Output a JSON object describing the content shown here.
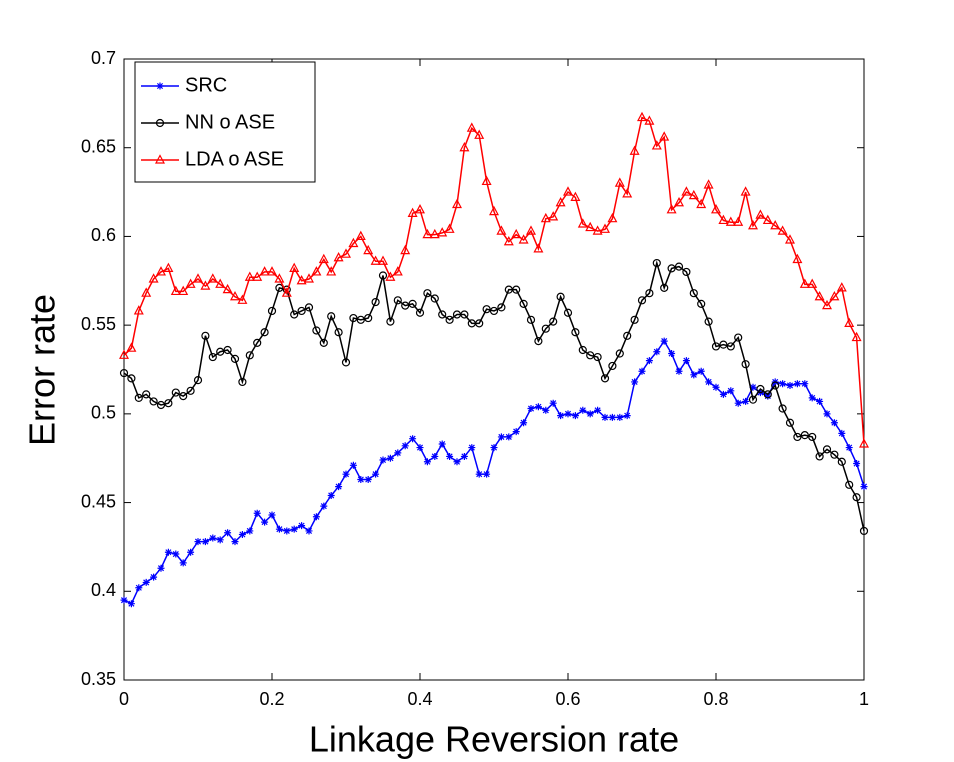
{
  "chart_data": {
    "type": "line",
    "x_label": "Linkage Reversion rate",
    "y_label": "Error rate",
    "xlim": [
      0,
      1
    ],
    "ylim": [
      0.35,
      0.7
    ],
    "xticks": [
      0,
      0.2,
      0.4,
      0.6,
      0.8,
      1
    ],
    "yticks": [
      0.35,
      0.4,
      0.45,
      0.5,
      0.55,
      0.6,
      0.65,
      0.7
    ],
    "legend": "upper left",
    "grid": false,
    "x": [
      0,
      0.01,
      0.02,
      0.03,
      0.04,
      0.05,
      0.06,
      0.07,
      0.08,
      0.09,
      0.1,
      0.11,
      0.12,
      0.13,
      0.14,
      0.15,
      0.16,
      0.17,
      0.18,
      0.19,
      0.2,
      0.21,
      0.22,
      0.23,
      0.24,
      0.25,
      0.26,
      0.27,
      0.28,
      0.29,
      0.3,
      0.31,
      0.32,
      0.33,
      0.34,
      0.35,
      0.36,
      0.37,
      0.38,
      0.39,
      0.4,
      0.41,
      0.42,
      0.43,
      0.44,
      0.45,
      0.46,
      0.47,
      0.48,
      0.49,
      0.5,
      0.51,
      0.52,
      0.53,
      0.54,
      0.55,
      0.56,
      0.57,
      0.58,
      0.59,
      0.6,
      0.61,
      0.62,
      0.63,
      0.64,
      0.65,
      0.66,
      0.67,
      0.68,
      0.69,
      0.7,
      0.71,
      0.72,
      0.73,
      0.74,
      0.75,
      0.76,
      0.77,
      0.78,
      0.79,
      0.8,
      0.81,
      0.82,
      0.83,
      0.84,
      0.85,
      0.86,
      0.87,
      0.88,
      0.89,
      0.9,
      0.91,
      0.92,
      0.93,
      0.94,
      0.95,
      0.96,
      0.97,
      0.98,
      0.99,
      1
    ],
    "series": [
      {
        "name": "SRC",
        "color": "#0000ff",
        "marker": "star",
        "values": [
          0.395,
          0.393,
          0.402,
          0.405,
          0.408,
          0.413,
          0.422,
          0.421,
          0.416,
          0.422,
          0.428,
          0.428,
          0.43,
          0.429,
          0.433,
          0.428,
          0.432,
          0.434,
          0.444,
          0.439,
          0.443,
          0.435,
          0.434,
          0.435,
          0.437,
          0.434,
          0.442,
          0.448,
          0.454,
          0.459,
          0.466,
          0.471,
          0.463,
          0.463,
          0.466,
          0.474,
          0.475,
          0.478,
          0.482,
          0.486,
          0.481,
          0.473,
          0.476,
          0.483,
          0.476,
          0.473,
          0.476,
          0.481,
          0.466,
          0.466,
          0.481,
          0.487,
          0.487,
          0.49,
          0.495,
          0.503,
          0.504,
          0.502,
          0.506,
          0.499,
          0.5,
          0.499,
          0.502,
          0.5,
          0.502,
          0.498,
          0.498,
          0.498,
          0.499,
          0.518,
          0.524,
          0.53,
          0.535,
          0.541,
          0.534,
          0.524,
          0.53,
          0.522,
          0.524,
          0.518,
          0.515,
          0.511,
          0.513,
          0.506,
          0.507,
          0.515,
          0.512,
          0.51,
          0.518,
          0.517,
          0.516,
          0.517,
          0.517,
          0.509,
          0.507,
          0.5,
          0.495,
          0.489,
          0.481,
          0.472,
          0.459
        ]
      },
      {
        "name": "NN o ASE",
        "color": "#000000",
        "marker": "circle",
        "values": [
          0.523,
          0.52,
          0.509,
          0.511,
          0.507,
          0.505,
          0.506,
          0.512,
          0.51,
          0.513,
          0.519,
          0.544,
          0.532,
          0.535,
          0.536,
          0.531,
          0.518,
          0.533,
          0.54,
          0.546,
          0.558,
          0.571,
          0.57,
          0.556,
          0.558,
          0.56,
          0.547,
          0.54,
          0.555,
          0.546,
          0.529,
          0.554,
          0.553,
          0.554,
          0.563,
          0.578,
          0.552,
          0.564,
          0.561,
          0.562,
          0.557,
          0.568,
          0.565,
          0.556,
          0.553,
          0.556,
          0.556,
          0.551,
          0.551,
          0.559,
          0.558,
          0.56,
          0.57,
          0.57,
          0.562,
          0.553,
          0.541,
          0.548,
          0.552,
          0.566,
          0.557,
          0.546,
          0.536,
          0.533,
          0.532,
          0.52,
          0.527,
          0.534,
          0.544,
          0.553,
          0.564,
          0.568,
          0.585,
          0.571,
          0.582,
          0.583,
          0.58,
          0.568,
          0.562,
          0.552,
          0.538,
          0.539,
          0.538,
          0.543,
          0.528,
          0.508,
          0.514,
          0.511,
          0.516,
          0.503,
          0.495,
          0.487,
          0.488,
          0.487,
          0.476,
          0.48,
          0.477,
          0.473,
          0.46,
          0.453,
          0.434
        ]
      },
      {
        "name": "LDA o ASE",
        "color": "#ff0000",
        "marker": "triangle",
        "values": [
          0.533,
          0.537,
          0.558,
          0.568,
          0.576,
          0.58,
          0.582,
          0.569,
          0.569,
          0.573,
          0.576,
          0.572,
          0.576,
          0.573,
          0.57,
          0.566,
          0.564,
          0.577,
          0.577,
          0.58,
          0.58,
          0.576,
          0.568,
          0.582,
          0.575,
          0.576,
          0.58,
          0.587,
          0.58,
          0.588,
          0.59,
          0.596,
          0.6,
          0.592,
          0.586,
          0.586,
          0.577,
          0.58,
          0.592,
          0.613,
          0.615,
          0.601,
          0.601,
          0.602,
          0.604,
          0.618,
          0.65,
          0.661,
          0.657,
          0.631,
          0.614,
          0.603,
          0.597,
          0.601,
          0.598,
          0.603,
          0.593,
          0.61,
          0.611,
          0.619,
          0.625,
          0.622,
          0.607,
          0.605,
          0.603,
          0.604,
          0.61,
          0.63,
          0.624,
          0.648,
          0.667,
          0.665,
          0.651,
          0.656,
          0.615,
          0.619,
          0.625,
          0.623,
          0.618,
          0.629,
          0.615,
          0.609,
          0.608,
          0.608,
          0.625,
          0.606,
          0.612,
          0.609,
          0.606,
          0.603,
          0.598,
          0.587,
          0.573,
          0.573,
          0.566,
          0.561,
          0.566,
          0.571,
          0.551,
          0.543,
          0.483
        ]
      }
    ]
  }
}
